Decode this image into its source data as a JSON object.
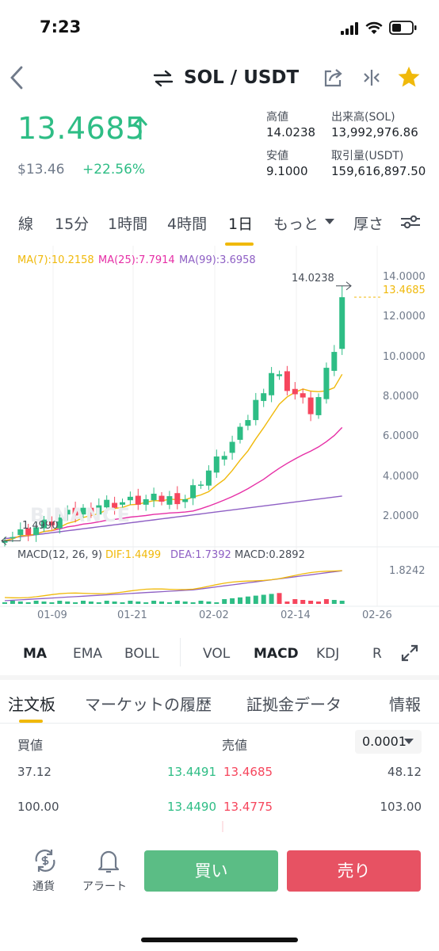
{
  "status_bar": {
    "time": "7:23"
  },
  "header": {
    "back_icon": "chevron-left-icon",
    "swap_icon": "swap-arrows-icon",
    "pair": "SOL / USDT",
    "share_icon": "share-icon",
    "compare_icon": "compare-icon",
    "favorite_icon": "star-icon",
    "favorite_color": "#f0b90b"
  },
  "ticker": {
    "last_price": "13.4685",
    "price_direction": "up",
    "usd_price": "$13.46",
    "change_pct": "+22.56%",
    "up_color": "#2ebd85",
    "down_color": "#f6465d"
  },
  "stats": {
    "high_label": "高値",
    "high_value": "14.0238",
    "low_label": "安値",
    "low_value": "9.1000",
    "vol_base_label": "出来高(SOL)",
    "vol_base_value": "13,992,976.86",
    "vol_quote_label": "取引量(USDT)",
    "vol_quote_value": "159,616,897.50"
  },
  "timeframes": {
    "line": "線",
    "m15": "15分",
    "h1": "1時間",
    "h4": "4時間",
    "d1": "1日",
    "more": "もっと",
    "depth": "厚さ",
    "active": "1日",
    "settings_icon": "sliders-icon"
  },
  "ma_legend": {
    "ma7": "MA(7):10.2158",
    "ma25": "MA(25):7.7914",
    "ma99": "MA(99):3.6958"
  },
  "price_axis": [
    "14.0000",
    "12.0000",
    "10.0000",
    "8.0000",
    "6.0000",
    "4.0000",
    "2.0000"
  ],
  "current_price_label": "13.4685",
  "high_marker": "14.0238",
  "low_marker": "1.4990",
  "watermark": "BINANCE",
  "macd_legend": {
    "params": "MACD(12, 26, 9)",
    "dif": "DIF:1.4499",
    "dea": "DEA:1.7392",
    "macd": "MACD:0.2892"
  },
  "macd_axis": "1.8242",
  "date_axis": [
    "01-09",
    "01-21",
    "02-02",
    "02-14",
    "02-26"
  ],
  "chart_data": {
    "type": "candlestick",
    "series": [
      {
        "name": "MA(7)",
        "value": 10.2158,
        "color": "#f0b90b"
      },
      {
        "name": "MA(25)",
        "value": 7.7914,
        "color": "#e62fa6"
      },
      {
        "name": "MA(99)",
        "value": 3.6958,
        "color": "#8e5fc4"
      }
    ],
    "ylim": [
      1.2,
      14.6
    ],
    "high": 14.0238,
    "low": 1.499,
    "last": 13.4685,
    "x_ticks": [
      "01-09",
      "01-21",
      "02-02",
      "02-14",
      "02-26"
    ]
  },
  "indicators": {
    "ma": "MA",
    "ema": "EMA",
    "boll": "BOLL",
    "vol": "VOL",
    "macd": "MACD",
    "kdj": "KDJ",
    "rsi": "R",
    "expand_icon": "expand-icon"
  },
  "sections": {
    "orderbook": "注文板",
    "trades": "マーケットの履歴",
    "margin": "証拠金データ",
    "info": "情報"
  },
  "orderbook": {
    "bid_header": "買値",
    "ask_header": "売値",
    "precision": "0.0001",
    "rows": [
      {
        "bid_qty": "37.12",
        "bid_price": "13.4491",
        "ask_price": "13.4685",
        "ask_qty": "48.12"
      },
      {
        "bid_qty": "100.00",
        "bid_price": "13.4490",
        "ask_price": "13.4775",
        "ask_qty": "103.00"
      }
    ]
  },
  "bottom": {
    "currency_label": "通貨",
    "alert_label": "アラート",
    "buy": "買い",
    "sell": "売り"
  }
}
